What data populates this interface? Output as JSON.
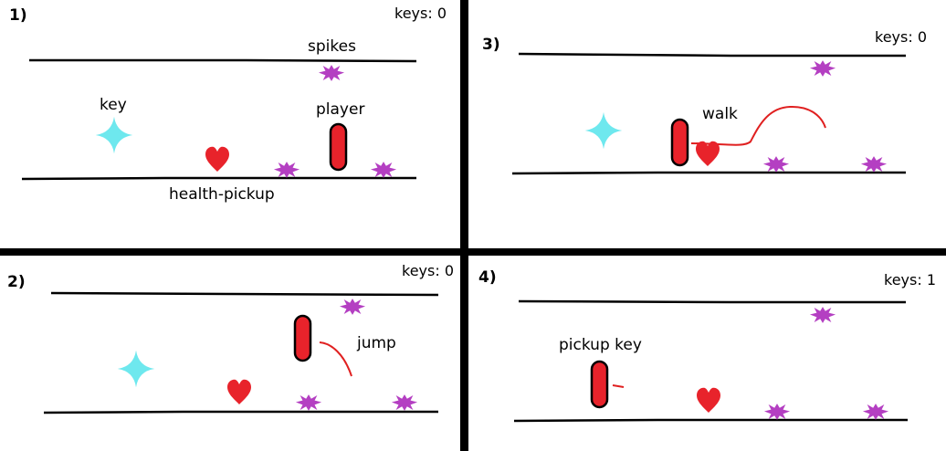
{
  "panels": [
    {
      "number": "1)",
      "keys_text": "keys: 0",
      "labels": {
        "spikes": "spikes",
        "key": "key",
        "player": "player",
        "health": "health-pickup"
      }
    },
    {
      "number": "2)",
      "keys_text": "keys: 0",
      "action": "jump"
    },
    {
      "number": "3)",
      "keys_text": "keys: 0",
      "action": "walk"
    },
    {
      "number": "4)",
      "keys_text": "keys: 1",
      "action": "pickup key"
    }
  ],
  "colors": {
    "player": "#e8232b",
    "heart": "#e8232b",
    "key": "#6ee8ee",
    "spike": "#b43fc2",
    "motion_line": "#e02020",
    "divider": "#000000"
  },
  "icons": [
    "player-capsule-icon",
    "heart-icon",
    "key-star-icon",
    "spike-icon"
  ]
}
